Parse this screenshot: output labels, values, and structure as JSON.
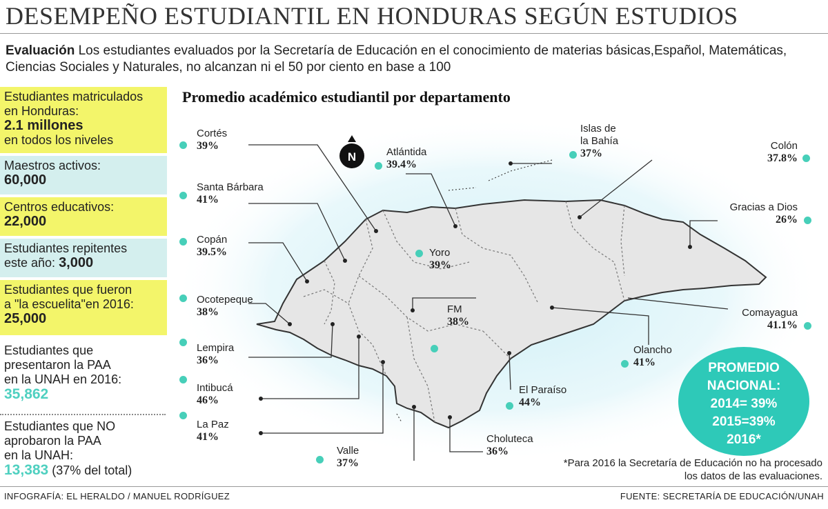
{
  "title": "DESEMPEÑO ESTUDIANTIL EN HONDURAS SEGÚN ESTUDIOS",
  "intro": {
    "lead": "Evaluación",
    "text": " Los estudiantes evaluados por la Secretaría de Educación en el conocimiento de materias básicas,Español, Matemáticas, Ciencias Sociales y Naturales, no alcanzan ni el 50 por ciento en base a 100"
  },
  "stats": {
    "matriculados": {
      "line1": "Estudiantes matriculados",
      "line2": "en Honduras:",
      "value": "2.1 millones",
      "line3": "en todos los niveles"
    },
    "maestros": {
      "label": "Maestros activos:",
      "value": "60,000"
    },
    "centros": {
      "label": "Centros educativos:",
      "value": "22,000"
    },
    "repitentes": {
      "line1": "Estudiantes repitentes",
      "line2": "este año: ",
      "value": "3,000"
    },
    "escuelita": {
      "line1": "Estudiantes que fueron",
      "line2": "a \"la escuelita\"en 2016:",
      "value": "25,000"
    },
    "paa": {
      "line1": "Estudiantes que",
      "line2": "presentaron la PAA",
      "line3": "en la UNAH en 2016:",
      "value": "35,862"
    },
    "no_paa": {
      "line1": "Estudiantes que NO",
      "line2": "aprobaron la PAA",
      "line3": "en la UNAH:",
      "value": "13,383",
      "suffix": " (37% del total)"
    }
  },
  "map_title": "Promedio académico  estudiantil por departamento",
  "compass": "N",
  "departments": [
    {
      "name": "Cortés",
      "pct": "39%"
    },
    {
      "name": "Santa Bárbara",
      "pct": "41%"
    },
    {
      "name": "Copán",
      "pct": "39.5%"
    },
    {
      "name": "Ocotepeque",
      "pct": "38%"
    },
    {
      "name": "Lempira",
      "pct": "36%"
    },
    {
      "name": "Intibucá",
      "pct": "46%"
    },
    {
      "name": "La Paz",
      "pct": "41%"
    },
    {
      "name": "Valle",
      "pct": "37%"
    },
    {
      "name": "Atlántida",
      "pct": "39.4%"
    },
    {
      "name": "Yoro",
      "pct": "39%"
    },
    {
      "name": "FM",
      "pct": "38%"
    },
    {
      "name": "El Paraíso",
      "pct": "44%"
    },
    {
      "name": "Choluteca",
      "pct": "36%"
    },
    {
      "name": "Olancho",
      "pct": "41%"
    },
    {
      "name": "Comayagua",
      "pct": "41.1%"
    },
    {
      "name": "Gracias a Dios",
      "pct": "26%"
    },
    {
      "name": "Colón",
      "pct": "37.8%"
    },
    {
      "name": "Islas de la Bahía",
      "pct": "37%"
    }
  ],
  "islas_line1": "Islas de",
  "islas_line2": "la Bahía",
  "promedio": {
    "line1": "PROMEDIO",
    "line2": "NACIONAL:",
    "line3": "2014= 39%",
    "line4": "2015=39%",
    "line5": "2016*"
  },
  "note": "*Para 2016 la Secretaría de Educación no ha procesado los datos de las evaluaciones.",
  "credit_left": "INFOGRAFÍA: EL HERALDO / MANUEL RODRÍGUEZ",
  "credit_right": "FUENTE: SECRETARÍA DE EDUCACIÓN/UNAH",
  "colors": {
    "accent": "#47cfb9",
    "highlight_yellow": "#f3f56a",
    "highlight_cyan": "#d4efee",
    "map_fill": "#e6e6e6",
    "glow": "#cdeff6"
  }
}
